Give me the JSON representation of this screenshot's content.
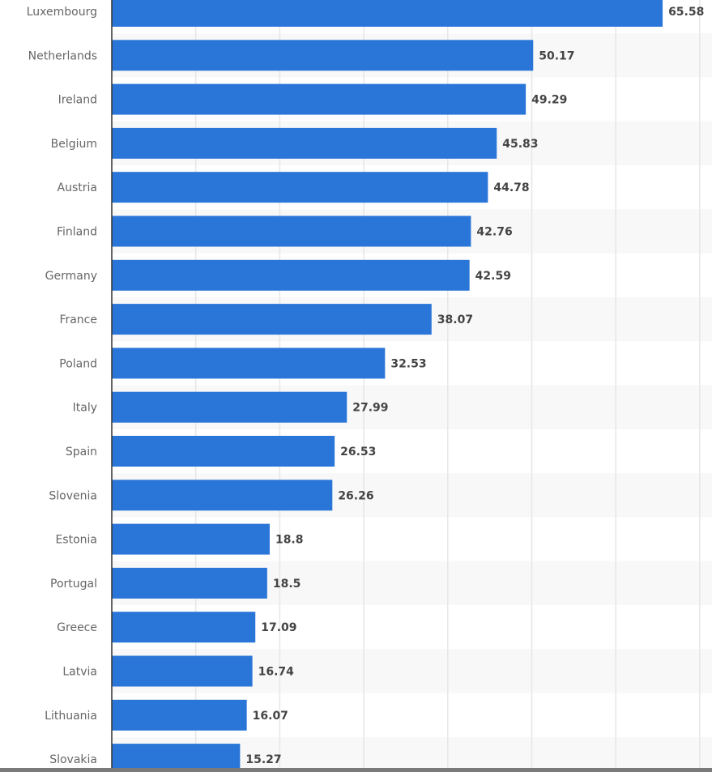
{
  "chart_data": {
    "type": "bar",
    "orientation": "horizontal",
    "title": "",
    "xlabel": "",
    "ylabel": "",
    "categories": [
      "Luxembourg",
      "Netherlands",
      "Ireland",
      "Belgium",
      "Austria",
      "Finland",
      "Germany",
      "France",
      "Poland",
      "Italy",
      "Spain",
      "Slovenia",
      "Estonia",
      "Portugal",
      "Greece",
      "Latvia",
      "Lithuania",
      "Slovakia"
    ],
    "values": [
      65.58,
      50.17,
      49.29,
      45.83,
      44.78,
      42.76,
      42.59,
      38.07,
      32.53,
      27.99,
      26.53,
      26.26,
      18.8,
      18.5,
      17.09,
      16.74,
      16.07,
      15.27
    ],
    "value_labels": [
      "65.58",
      "50.17",
      "49.29",
      "45.83",
      "44.78",
      "42.76",
      "42.59",
      "38.07",
      "32.53",
      "27.99",
      "26.53",
      "26.26",
      "18.8",
      "18.5",
      "17.09",
      "16.74",
      "16.07",
      "15.27"
    ],
    "xlim": [
      0,
      70
    ],
    "gridlines": [
      10,
      20,
      30,
      40,
      50,
      60,
      70
    ],
    "grid": true,
    "legend": "none",
    "colors": {
      "bar": "#2a76d8",
      "grid": "#e6e6e6",
      "stripe": "#f8f8f8",
      "axis": "#333333"
    }
  }
}
